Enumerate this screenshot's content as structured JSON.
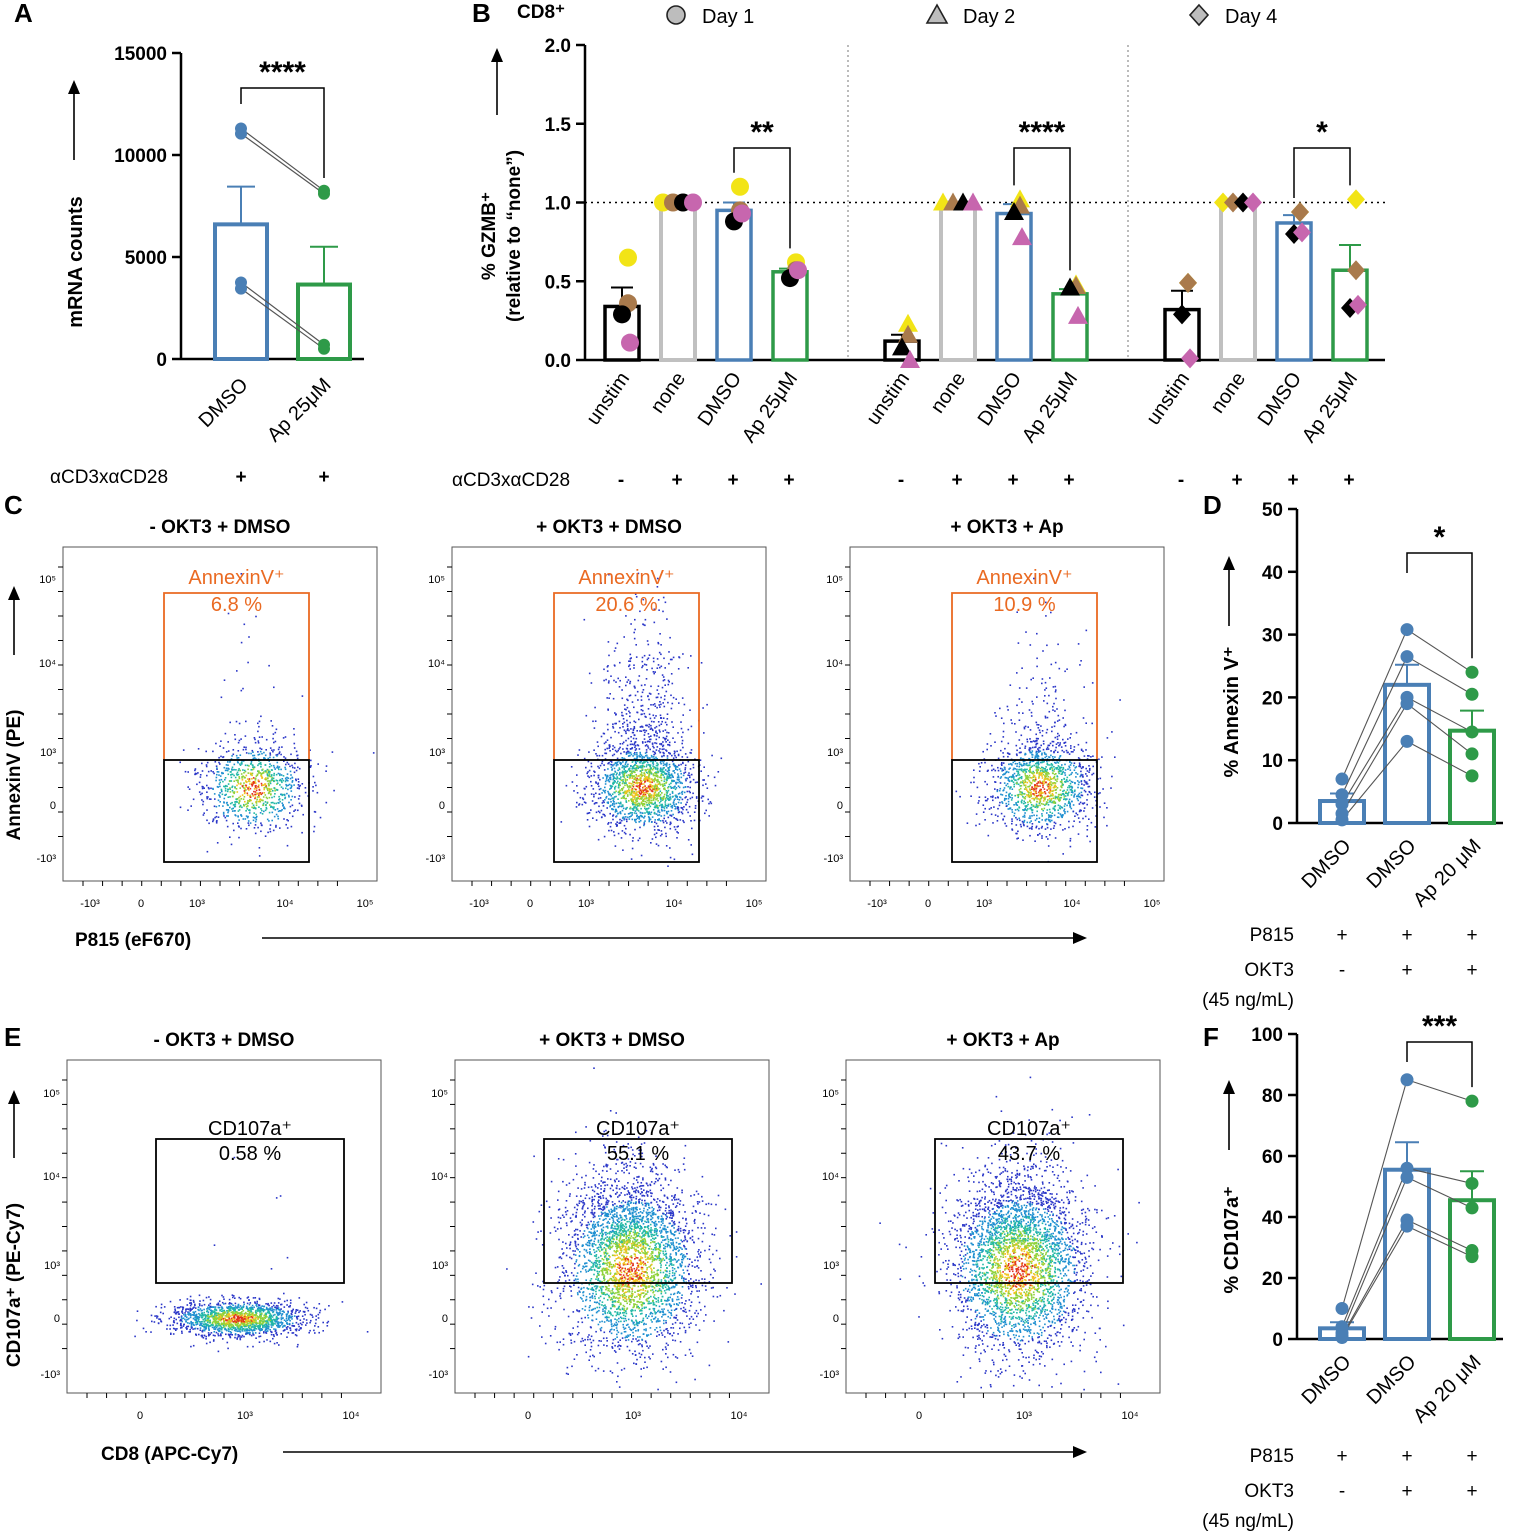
{
  "panel_letters": [
    "A",
    "B",
    "C",
    "D",
    "E",
    "F"
  ],
  "chart_data": [
    {
      "panel": "A",
      "type": "bar",
      "categories": [
        "DMSO",
        "Ap 25μM"
      ],
      "values": [
        6600,
        3650
      ],
      "sem": [
        1850,
        1850
      ],
      "points": [
        [
          11300,
          11050,
          3750,
          3450
        ],
        [
          8250,
          8100,
          700,
          500
        ]
      ],
      "ylabel": "mRNA counts",
      "ylim": [
        0,
        15000
      ],
      "yticks": [
        "0",
        "5000",
        "10000",
        "15000"
      ],
      "significance": "****",
      "condition_label": "αCD3xαCD28",
      "condition_values": [
        "+",
        "+"
      ],
      "colors": [
        "#4a7fb5",
        "#2e9a48"
      ]
    },
    {
      "panel": "B",
      "type": "bar",
      "title": "CD8⁺",
      "legend": [
        "Day 1",
        "Day 2",
        "Day 4"
      ],
      "categories": [
        "unstim",
        "none",
        "DMSO",
        "Ap 25μM"
      ],
      "ylabel": "% GZMB⁺",
      "ylabel2": "(relative to “none”)",
      "ylim": [
        0,
        2.0
      ],
      "yticks": [
        "0.0",
        "0.5",
        "1.0",
        "1.5",
        "2.0"
      ],
      "reference_line": 1.0,
      "condition_label": "αCD3xαCD28",
      "condition_values": [
        "-",
        "+",
        "+",
        "+"
      ],
      "groups": [
        {
          "day": "Day 1",
          "marker": "circle",
          "significance": "**",
          "values": [
            0.34,
            1.0,
            0.95,
            0.56
          ],
          "sem": [
            0.12,
            0.0,
            0.05,
            0.02
          ],
          "points": [
            [
              0.65,
              0.36,
              0.29,
              0.11
            ],
            [
              1.0,
              1.0,
              1.0,
              1.0
            ],
            [
              1.1,
              0.95,
              0.88,
              0.93
            ],
            [
              0.62,
              0.57,
              0.52,
              0.57
            ]
          ]
        },
        {
          "day": "Day 2",
          "marker": "triangle",
          "significance": "****",
          "values": [
            0.12,
            1.0,
            0.93,
            0.42
          ],
          "sem": [
            0.04,
            0.0,
            0.06,
            0.03
          ],
          "points": [
            [
              0.23,
              0.16,
              0.08,
              0.0
            ],
            [
              1.0,
              1.0,
              1.0,
              1.0
            ],
            [
              1.02,
              0.98,
              0.94,
              0.78
            ],
            [
              0.48,
              0.47,
              0.46,
              0.28
            ]
          ]
        },
        {
          "day": "Day 4",
          "marker": "diamond",
          "significance": "*",
          "values": [
            0.32,
            1.0,
            0.87,
            0.57
          ],
          "sem": [
            0.12,
            0.0,
            0.05,
            0.16
          ],
          "points": [
            [
              0.49,
              0.49,
              0.29,
              0.01
            ],
            [
              1.0,
              1.0,
              1.0,
              1.0
            ],
            [
              0.94,
              0.94,
              0.8,
              0.81
            ],
            [
              1.02,
              0.57,
              0.33,
              0.35
            ]
          ]
        }
      ],
      "colors": [
        "#000000",
        "#c0c0c0",
        "#4a7fb5",
        "#2e9a48"
      ]
    },
    {
      "panel": "C",
      "type": "scatter",
      "xlabel": "P815 (eF670)",
      "ylabel": "AnnexinV (PE)",
      "gate_label": "AnnexinV⁺",
      "x_ticks": [
        "-10³",
        "0",
        "10³",
        "10⁴",
        "10⁵"
      ],
      "y_ticks": [
        "10⁵",
        "10⁴",
        "10³",
        "0",
        "-10³"
      ],
      "plots": [
        {
          "title": "- OKT3 + DMSO",
          "gate_value": "6.8 %"
        },
        {
          "title": "+ OKT3 + DMSO",
          "gate_value": "20.6 %"
        },
        {
          "title": "+ OKT3 + Ap",
          "gate_value": "10.9 %"
        }
      ]
    },
    {
      "panel": "D",
      "type": "bar",
      "categories": [
        "DMSO",
        "DMSO",
        "Ap 20 μM"
      ],
      "values": [
        3.5,
        22.0,
        14.7
      ],
      "sem": [
        1.2,
        3.2,
        3.2
      ],
      "points": [
        [
          7.0,
          4.5,
          3.0,
          1.5,
          0.5
        ],
        [
          30.8,
          26.5,
          20.0,
          19.0,
          13.0
        ],
        [
          24.0,
          20.5,
          14.5,
          11.0,
          7.5
        ]
      ],
      "ylabel": "% Annexin V⁺",
      "ylim": [
        0,
        50
      ],
      "yticks": [
        "0",
        "10",
        "20",
        "30",
        "40",
        "50"
      ],
      "significance": "*",
      "conditions": [
        {
          "label": "P815",
          "values": [
            "+",
            "+",
            "+"
          ]
        },
        {
          "label": "OKT3",
          "label2": "(45 ng/mL)",
          "values": [
            "-",
            "+",
            "+"
          ]
        }
      ],
      "colors": [
        "#4a7fb5",
        "#4a7fb5",
        "#2e9a48"
      ]
    },
    {
      "panel": "E",
      "type": "scatter",
      "xlabel": "CD8 (APC-Cy7)",
      "ylabel": "CD107a⁺ (PE-Cy7)",
      "gate_label": "CD107a⁺",
      "x_ticks": [
        "0",
        "10³",
        "10⁴"
      ],
      "y_ticks": [
        "10⁵",
        "10⁴",
        "10³",
        "0",
        "-10³"
      ],
      "plots": [
        {
          "title": "- OKT3 + DMSO",
          "gate_value": "0.58 %"
        },
        {
          "title": "+ OKT3 + DMSO",
          "gate_value": "55.1 %"
        },
        {
          "title": "+ OKT3 + Ap",
          "gate_value": "43.7 %"
        }
      ]
    },
    {
      "panel": "F",
      "type": "bar",
      "categories": [
        "DMSO",
        "DMSO",
        "Ap 20 μM"
      ],
      "values": [
        3.5,
        55.5,
        45.5
      ],
      "sem": [
        2.0,
        9.0,
        9.5
      ],
      "points": [
        [
          10.0,
          4.0,
          2.0,
          1.0,
          0.5
        ],
        [
          85.0,
          56.0,
          53.0,
          39.0,
          37.0
        ],
        [
          78.0,
          51.0,
          43.0,
          29.0,
          27.0
        ]
      ],
      "ylabel": "% CD107a⁺",
      "ylim": [
        0,
        100
      ],
      "yticks": [
        "0",
        "20",
        "40",
        "60",
        "80",
        "100"
      ],
      "significance": "***",
      "conditions": [
        {
          "label": "P815",
          "values": [
            "+",
            "+",
            "+"
          ]
        },
        {
          "label": "OKT3",
          "label2": "(45 ng/mL)",
          "values": [
            "-",
            "+",
            "+"
          ]
        }
      ],
      "colors": [
        "#4a7fb5",
        "#4a7fb5",
        "#2e9a48"
      ]
    }
  ]
}
